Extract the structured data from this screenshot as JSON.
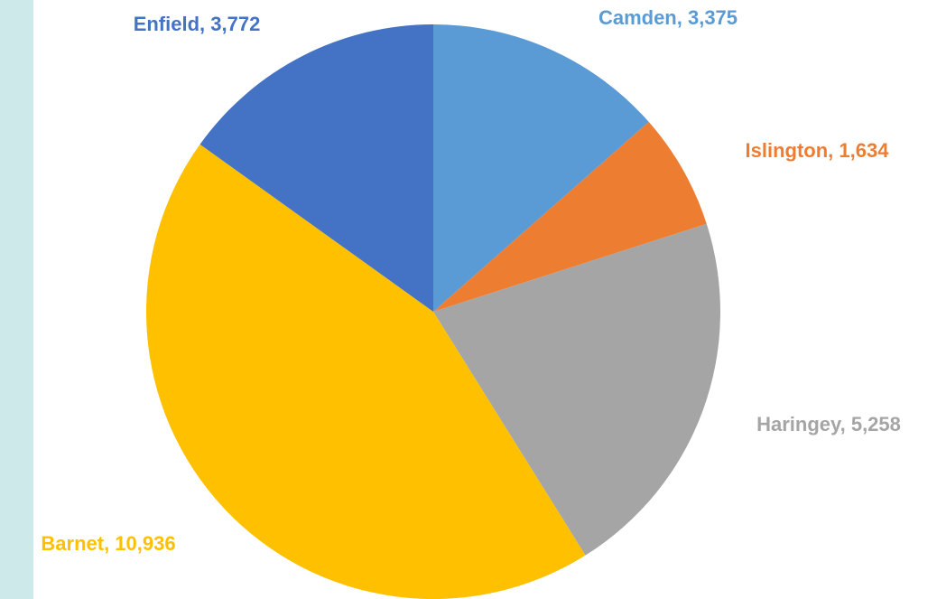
{
  "chart_data": {
    "type": "pie",
    "categories": [
      "Camden",
      "Islington",
      "Haringey",
      "Barnet",
      "Enfield"
    ],
    "values": [
      3375,
      1634,
      5258,
      10936,
      3772
    ],
    "value_labels": [
      "Camden, 3,375",
      "Islington, 1,634",
      "Haringey, 5,258",
      "Barnet, 10,936",
      "Enfield, 3,772"
    ],
    "colors": [
      "#5b9bd5",
      "#ed7d31",
      "#a5a5a5",
      "#ffc000",
      "#4472c4"
    ]
  }
}
